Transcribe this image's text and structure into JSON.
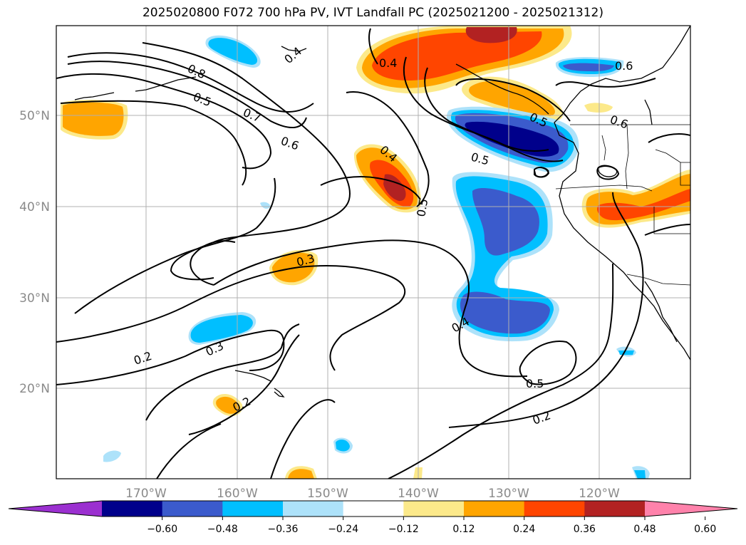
{
  "title": "2025020800 F072 700 hPa PV, IVT Landfall PC (2025021200 - 2025021312)",
  "map": {
    "lon_labels": [
      "170°W",
      "160°W",
      "150°W",
      "140°W",
      "130°W",
      "120°W"
    ],
    "lat_labels": [
      "50°N",
      "40°N",
      "30°N",
      "20°N"
    ],
    "contour_labels": [
      "0.4",
      "0.8",
      "0.5",
      "0.7",
      "0.6",
      "0.4",
      "0.5",
      "0.4",
      "0.6",
      "0.5",
      "0.5",
      "0.3",
      "0.3",
      "0.2",
      "0.2",
      "0.4",
      "0.5",
      "0.2",
      "0.6"
    ],
    "grid": true
  },
  "colorbar": {
    "ticks": [
      "−0.60",
      "−0.48",
      "−0.36",
      "−0.24",
      "−0.12",
      "0.12",
      "0.24",
      "0.36",
      "0.48",
      "0.60"
    ],
    "colors": [
      "#9b30d0",
      "#00008b",
      "#3b5bcc",
      "#00bfff",
      "#ade2fa",
      "#ffffff",
      "#fce98a",
      "#ffa500",
      "#ff4500",
      "#b22222",
      "#ff82ab"
    ],
    "extend": "both"
  }
}
